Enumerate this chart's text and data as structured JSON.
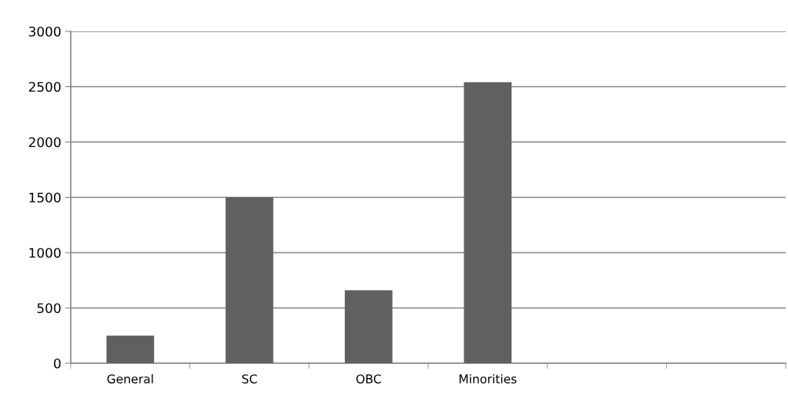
{
  "chart_data": {
    "type": "bar",
    "categories": [
      "General",
      "SC",
      "OBC",
      "Minorities",
      null,
      null
    ],
    "values": [
      250,
      1500,
      660,
      2540,
      null,
      null
    ],
    "color": "#606060",
    "ylim": [
      0,
      3000
    ],
    "yticks": [
      0,
      500,
      1000,
      1500,
      2000,
      2500,
      3000
    ],
    "grid": "y",
    "legend": false
  }
}
